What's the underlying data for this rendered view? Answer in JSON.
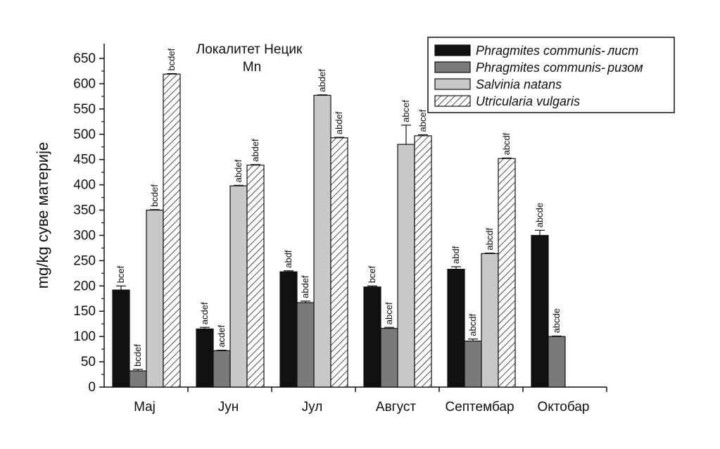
{
  "chart_data": {
    "type": "bar",
    "title": "Локалитет Нецик",
    "subtitle": "Mn",
    "ylabel": "mg/kg суве материје",
    "xlabel": "",
    "ylim": [
      0,
      650
    ],
    "yticks": [
      0,
      50,
      100,
      150,
      200,
      250,
      300,
      350,
      400,
      450,
      500,
      550,
      600,
      650
    ],
    "grid": false,
    "legend_position": "top-right",
    "categories": [
      "Мај",
      "Јун",
      "Јул",
      "Август",
      "Септембар",
      "Октобар"
    ],
    "series": [
      {
        "name": "Phragmites communis- лист",
        "name_italic": "Phragmites communis-",
        "name_suffix": "лист",
        "fill": "#111111",
        "pattern": "solid",
        "values": [
          192,
          115,
          228,
          198,
          233,
          300
        ],
        "errors": [
          8,
          3,
          2,
          2,
          5,
          10
        ],
        "labels": [
          "bcef",
          "acdef",
          "abdf",
          "bcef",
          "abdf",
          "abcde"
        ]
      },
      {
        "name": "Phragmites communis- ризом",
        "name_italic": "Phragmites communis-",
        "name_suffix": "ризом",
        "fill": "#7a7a7a",
        "pattern": "solid",
        "values": [
          32,
          72,
          167,
          116,
          91,
          100
        ],
        "errors": [
          3,
          1,
          3,
          2,
          4,
          1
        ],
        "labels": [
          "bcdef",
          "acdef",
          "abdef",
          "abcef",
          "abcdf",
          "abcde"
        ]
      },
      {
        "name": "Salvinia natans",
        "name_italic": "Salvinia natans",
        "name_suffix": "",
        "fill": "#c8c8c8",
        "pattern": "solid",
        "values": [
          350,
          398,
          577,
          480,
          264,
          null
        ],
        "errors": [
          1,
          1,
          1,
          38,
          1,
          null
        ],
        "labels": [
          "bcdef",
          "abdef",
          "abdef",
          "abcef",
          "abcdf",
          ""
        ]
      },
      {
        "name": "Utricularia vulgaris",
        "name_italic": "Utricularia vulgaris",
        "name_suffix": "",
        "fill": "#ffffff",
        "pattern": "hatch",
        "values": [
          619,
          439,
          493,
          497,
          452,
          null
        ],
        "errors": [
          1,
          1,
          1,
          2,
          1,
          null
        ],
        "labels": [
          "bcdef",
          "abdef",
          "abdef",
          "abcef",
          "abcdf",
          ""
        ]
      }
    ]
  }
}
